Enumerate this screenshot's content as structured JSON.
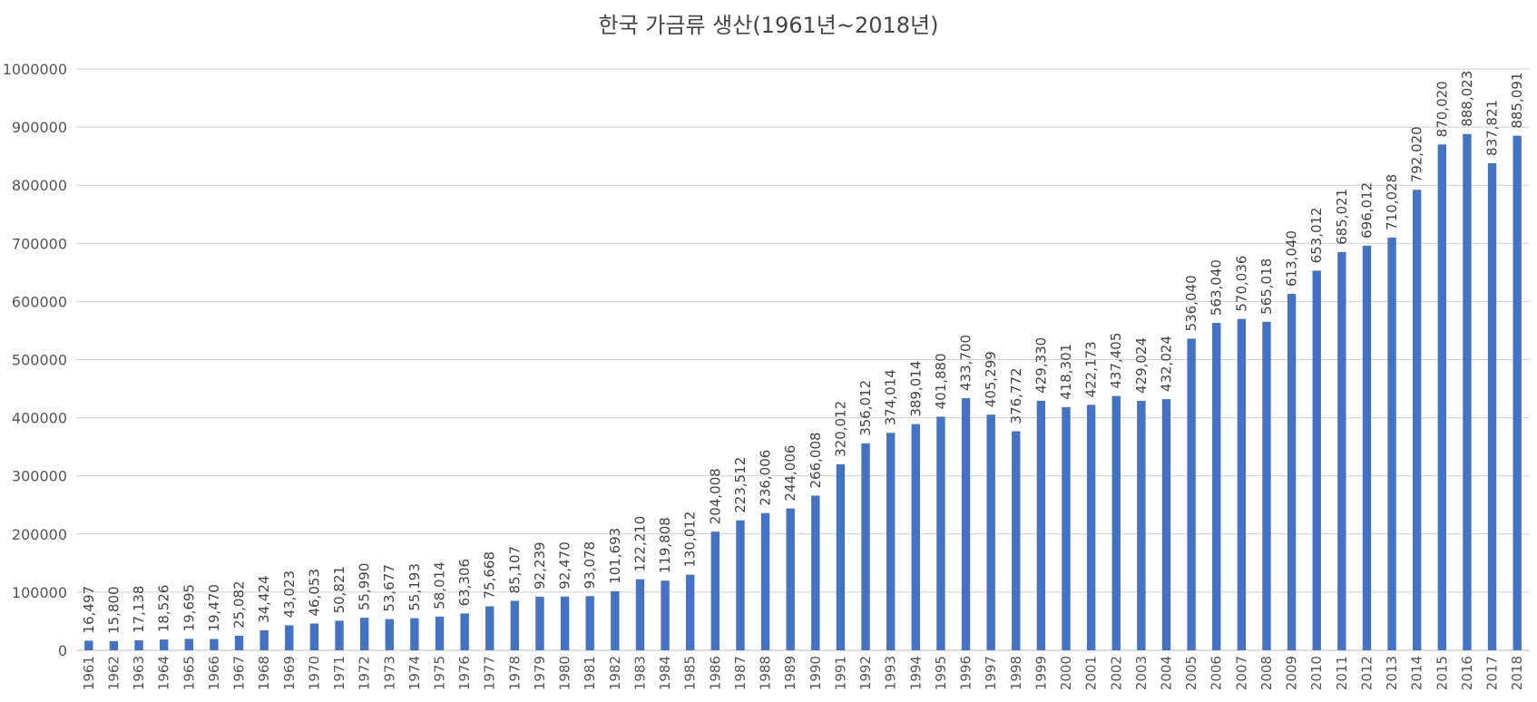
{
  "chart_data": {
    "type": "bar",
    "title": "한국 가금류 생산(1961년~2018년)",
    "xlabel": "",
    "ylabel": "",
    "ylim": [
      0,
      1000000
    ],
    "yticks": [
      "0",
      "100000",
      "200000",
      "300000",
      "400000",
      "500000",
      "600000",
      "700000",
      "800000",
      "900000",
      "1000000"
    ],
    "grid": true,
    "bar_color": "#4472C4",
    "categories": [
      "1961",
      "1962",
      "1963",
      "1964",
      "1965",
      "1966",
      "1967",
      "1968",
      "1969",
      "1970",
      "1971",
      "1972",
      "1973",
      "1974",
      "1975",
      "1976",
      "1977",
      "1978",
      "1979",
      "1980",
      "1981",
      "1982",
      "1983",
      "1984",
      "1985",
      "1986",
      "1987",
      "1988",
      "1989",
      "1990",
      "1991",
      "1992",
      "1993",
      "1994",
      "1995",
      "1996",
      "1997",
      "1998",
      "1999",
      "2000",
      "2001",
      "2002",
      "2003",
      "2004",
      "2005",
      "2006",
      "2007",
      "2008",
      "2009",
      "2010",
      "2011",
      "2012",
      "2013",
      "2014",
      "2015",
      "2016",
      "2017",
      "2018"
    ],
    "values": [
      16497,
      15800,
      17138,
      18526,
      19695,
      19470,
      25082,
      34424,
      43023,
      46053,
      50821,
      55990,
      53677,
      55193,
      58014,
      63306,
      75668,
      85107,
      92239,
      92470,
      93078,
      101693,
      122210,
      119808,
      130012,
      204008,
      223512,
      236006,
      244006,
      266008,
      320012,
      356012,
      374014,
      389014,
      401880,
      433700,
      405299,
      376772,
      429330,
      418301,
      422173,
      437405,
      429024,
      432024,
      536040,
      563040,
      570036,
      565018,
      613040,
      653012,
      685021,
      696012,
      710028,
      792020,
      870020,
      888023,
      837821,
      885091
    ],
    "data_labels": [
      "16,497",
      "15,800",
      "17,138",
      "18,526",
      "19,695",
      "19,470",
      "25,082",
      "34,424",
      "43,023",
      "46,053",
      "50,821",
      "55,990",
      "53,677",
      "55,193",
      "58,014",
      "63,306",
      "75,668",
      "85,107",
      "92,239",
      "92,470",
      "93,078",
      "101,693",
      "122,210",
      "119,808",
      "130,012",
      "204,008",
      "223,512",
      "236,006",
      "244,006",
      "266,008",
      "320,012",
      "356,012",
      "374,014",
      "389,014",
      "401,880",
      "433,700",
      "405,299",
      "376,772",
      "429,330",
      "418,301",
      "422,173",
      "437,405",
      "429,024",
      "432,024",
      "536,040",
      "563,040",
      "570,036",
      "565,018",
      "613,040",
      "653,012",
      "685,021",
      "696,012",
      "710,028",
      "792,020",
      "870,020",
      "888,023",
      "837,821",
      "885,091"
    ]
  }
}
